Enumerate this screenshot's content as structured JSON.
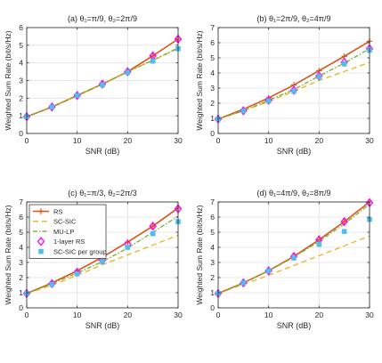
{
  "chart_data": [
    {
      "type": "line",
      "title": "(a) θ₁=π/9, θ₂=2π/9",
      "xlabel": "SNR (dB)",
      "ylabel": "Weighted Sum Rate (bit/s/Hz)",
      "xlim": [
        0,
        30
      ],
      "ylim": [
        0,
        6
      ],
      "xticks": [
        0,
        10,
        20,
        30
      ],
      "yticks": [
        0,
        1,
        2,
        3,
        4,
        5,
        6
      ],
      "grid": true,
      "x": [
        0,
        5,
        10,
        15,
        20,
        25,
        30
      ],
      "series": [
        {
          "name": "RS",
          "values": [
            0.95,
            1.5,
            2.15,
            2.8,
            3.5,
            4.4,
            5.35
          ]
        },
        {
          "name": "SC-SIC",
          "values": [
            0.95,
            1.5,
            2.15,
            2.8,
            3.5,
            4.15,
            4.8
          ]
        },
        {
          "name": "MU-LP",
          "values": [
            0.95,
            1.5,
            2.15,
            2.8,
            3.5,
            4.15,
            4.85
          ]
        },
        {
          "name": "1-layer RS",
          "values": [
            0.95,
            1.5,
            2.15,
            2.8,
            3.5,
            4.4,
            5.35
          ]
        },
        {
          "name": "SC-SIC per group",
          "values": [
            0.95,
            1.5,
            2.15,
            2.75,
            3.45,
            4.1,
            4.8
          ]
        }
      ]
    },
    {
      "type": "line",
      "title": "(b) θ₁=2π/9, θ₂=4π/9",
      "xlabel": "SNR (dB)",
      "ylabel": "Weighted Sum Rate (bit/s/Hz)",
      "xlim": [
        0,
        30
      ],
      "ylim": [
        0,
        7
      ],
      "xticks": [
        0,
        10,
        20,
        30
      ],
      "yticks": [
        0,
        1,
        2,
        3,
        4,
        5,
        6,
        7
      ],
      "grid": true,
      "x": [
        0,
        5,
        10,
        15,
        20,
        25,
        30
      ],
      "series": [
        {
          "name": "RS",
          "values": [
            0.95,
            1.6,
            2.35,
            3.2,
            4.15,
            5.1,
            6.1
          ]
        },
        {
          "name": "SC-SIC",
          "values": [
            0.95,
            1.5,
            2.1,
            2.8,
            3.5,
            4.1,
            4.7
          ]
        },
        {
          "name": "MU-LP",
          "values": [
            0.95,
            1.5,
            2.2,
            2.9,
            3.8,
            4.65,
            5.6
          ]
        },
        {
          "name": "1-layer RS",
          "values": [
            0.95,
            1.5,
            2.2,
            2.85,
            3.8,
            4.7,
            5.6
          ]
        },
        {
          "name": "SC-SIC per group",
          "values": [
            0.95,
            1.5,
            2.15,
            2.8,
            3.75,
            4.6,
            5.5
          ]
        }
      ]
    },
    {
      "type": "line",
      "title": "(c) θ₁=π/3, θ₂=2π/3",
      "xlabel": "SNR (dB)",
      "ylabel": "Weighted Sum Rate (bit/s/Hz)",
      "xlim": [
        0,
        30
      ],
      "ylim": [
        0,
        7
      ],
      "xticks": [
        0,
        10,
        20,
        30
      ],
      "yticks": [
        0,
        1,
        2,
        3,
        4,
        5,
        6,
        7
      ],
      "grid": true,
      "x": [
        0,
        5,
        10,
        15,
        20,
        25,
        30
      ],
      "legend": {
        "position": "top-left",
        "entries": [
          "RS",
          "SC-SIC",
          "MU-LP",
          "1-layer RS",
          "SC-SIC per group"
        ]
      },
      "series": [
        {
          "name": "RS",
          "values": [
            0.95,
            1.65,
            2.45,
            3.35,
            4.35,
            5.4,
            6.6
          ]
        },
        {
          "name": "SC-SIC",
          "values": [
            0.95,
            1.5,
            2.15,
            2.85,
            3.5,
            4.15,
            4.8
          ]
        },
        {
          "name": "MU-LP",
          "values": [
            0.95,
            1.6,
            2.3,
            3.05,
            3.95,
            5.0,
            6.05
          ]
        },
        {
          "name": "1-layer RS",
          "values": [
            0.95,
            1.6,
            2.35,
            3.15,
            4.2,
            5.4,
            6.55
          ]
        },
        {
          "name": "SC-SIC per group",
          "values": [
            0.95,
            1.55,
            2.25,
            3.05,
            4.0,
            4.9,
            5.7
          ]
        }
      ]
    },
    {
      "type": "line",
      "title": "(d) θ₁=4π/9, θ₂=8π/9",
      "xlabel": "SNR (dB)",
      "ylabel": "Weighted Sum Rate (bit/s/Hz)",
      "xlim": [
        0,
        30
      ],
      "ylim": [
        0,
        7
      ],
      "xticks": [
        0,
        10,
        20,
        30
      ],
      "yticks": [
        0,
        1,
        2,
        3,
        4,
        5,
        6,
        7
      ],
      "grid": true,
      "x": [
        0,
        5,
        10,
        15,
        20,
        25,
        30
      ],
      "series": [
        {
          "name": "RS",
          "values": [
            0.95,
            1.65,
            2.45,
            3.4,
            4.5,
            5.7,
            7.0
          ]
        },
        {
          "name": "SC-SIC",
          "values": [
            0.95,
            1.55,
            2.15,
            2.8,
            3.45,
            4.1,
            4.75
          ]
        },
        {
          "name": "MU-LP",
          "values": [
            0.95,
            1.65,
            2.45,
            3.35,
            4.4,
            5.55,
            6.85
          ]
        },
        {
          "name": "1-layer RS",
          "values": [
            0.95,
            1.65,
            2.45,
            3.4,
            4.5,
            5.7,
            6.95
          ]
        },
        {
          "name": "SC-SIC per group",
          "values": [
            0.95,
            1.65,
            2.45,
            3.3,
            4.2,
            5.05,
            5.85
          ]
        }
      ]
    }
  ],
  "styles": {
    "RS": {
      "color": "#d95319",
      "dash": "",
      "marker": "plus"
    },
    "SC-SIC": {
      "color": "#edb120",
      "dash": "6,4",
      "marker": "none"
    },
    "MU-LP": {
      "color": "#77ac30",
      "dash": "5,2,1.5,2",
      "marker": "none"
    },
    "1-layer RS": {
      "color": "#ff00ff",
      "dash": "",
      "marker": "diamond",
      "line": false
    },
    "SC-SIC per group": {
      "color": "#4dbeee",
      "dash": "",
      "marker": "square",
      "line": false
    }
  },
  "axis_color": "#262626",
  "grid_color": "#e0e0e0"
}
